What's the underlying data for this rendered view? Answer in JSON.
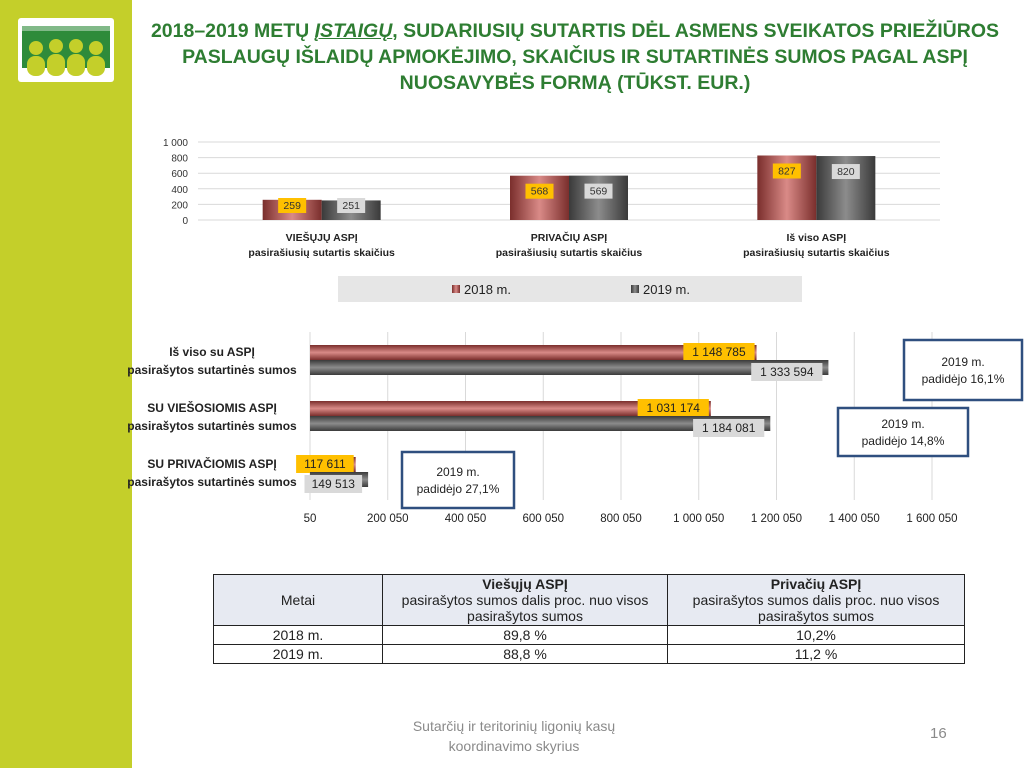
{
  "title": {
    "line1": "2018–2019 METŲ ",
    "line1_u": "ĮSTAIGŲ",
    "line1_rest": ", SUDARIUSIŲ SUTARTIS DĖL ASMENS SVEIKATOS PRIEŽIŪROS",
    "line2": "PASLAUGŲ IŠLAIDŲ APMOKĖJIMO, SKAIČIUS IR SUTARTINĖS SUMOS PAGAL ASPĮ",
    "line3": "NUOSAVYBĖS FORMĄ (TŪKST. EUR.)"
  },
  "colors": {
    "s2018": "#c0504d",
    "s2019": "#595959",
    "label2018_bg": "#ffc000",
    "label2019_bg": "#d9d9d9",
    "title": "#2e7d32",
    "callout_border": "#2f4f7f",
    "legend_bg": "#e6e6e6"
  },
  "chart_data": [
    {
      "type": "bar",
      "categories": [
        [
          "VIEŠŲJŲ ASPĮ",
          "pasirašiusių sutartis skaičius"
        ],
        [
          "PRIVAČIŲ ASPĮ",
          "pasirašiusių sutartis skaičius"
        ],
        [
          "Iš viso  ASPĮ",
          "pasirašiusių sutartis skaičius"
        ]
      ],
      "series": [
        {
          "name": "2018 m.",
          "values": [
            259,
            568,
            827
          ]
        },
        {
          "name": "2019 m.",
          "values": [
            251,
            569,
            820
          ]
        }
      ],
      "ylim": [
        0,
        1000
      ],
      "yticks": [
        0,
        200,
        400,
        600,
        800,
        1000
      ],
      "ytick_labels": [
        "0",
        "200",
        "400",
        "600",
        "800",
        "1 000"
      ],
      "value_labels": [
        [
          "259",
          "568",
          "827"
        ],
        [
          "251",
          "569",
          "820"
        ]
      ],
      "grid": true,
      "legend_position": "bottom"
    },
    {
      "type": "bar",
      "orientation": "horizontal",
      "categories": [
        [
          "Iš viso su ASPĮ",
          "pasirašytos sutartinės sumos"
        ],
        [
          "SU VIEŠOSIOMIS ASPĮ",
          "pasirašytos sutartinės sumos"
        ],
        [
          "SU PRIVAČIOMIS ASPĮ",
          "pasirašytos sutartinės sumos"
        ]
      ],
      "series": [
        {
          "name": "2018 m.",
          "values": [
            1148785,
            1031174,
            117611
          ]
        },
        {
          "name": "2019 m.",
          "values": [
            1333594,
            1184081,
            149513
          ]
        }
      ],
      "value_labels": [
        [
          "1 148 785",
          "1 031 174",
          "117 611"
        ],
        [
          "1 333 594",
          "1 184 081",
          "149 513"
        ]
      ],
      "xlim": [
        50,
        1600050
      ],
      "xticks": [
        50,
        200050,
        400050,
        600050,
        800050,
        1000050,
        1200050,
        1400050,
        1600050
      ],
      "xtick_labels": [
        "50",
        "200 050",
        "400 050",
        "600 050",
        "800 050",
        "1 000 050",
        "1 200 050",
        "1 400 050",
        "1 600 050"
      ],
      "grid": true,
      "annotations": [
        [
          "2019 m.",
          "padidėjo 16,1%"
        ],
        [
          "2019 m.",
          "padidėjo 14,8%"
        ],
        [
          "2019 m.",
          "padidėjo 27,1%"
        ]
      ]
    }
  ],
  "table": {
    "headers": [
      {
        "main": "Metai",
        "sub": ""
      },
      {
        "main": "Viešųjų ASPĮ",
        "sub": "pasirašytos sumos dalis proc. nuo visos pasirašytos sumos"
      },
      {
        "main": "Privačių ASPĮ",
        "sub": "pasirašytos sumos dalis proc. nuo visos pasirašytos sumos"
      }
    ],
    "rows": [
      [
        "2018 m.",
        "89,8 %",
        "10,2%"
      ],
      [
        "2019 m.",
        "88,8 %",
        "11,2 %"
      ]
    ]
  },
  "footer": {
    "text_line1": "Sutarčių ir teritorinių ligonių kasų",
    "text_line2": "koordinavimo skyrius",
    "page": "16"
  }
}
